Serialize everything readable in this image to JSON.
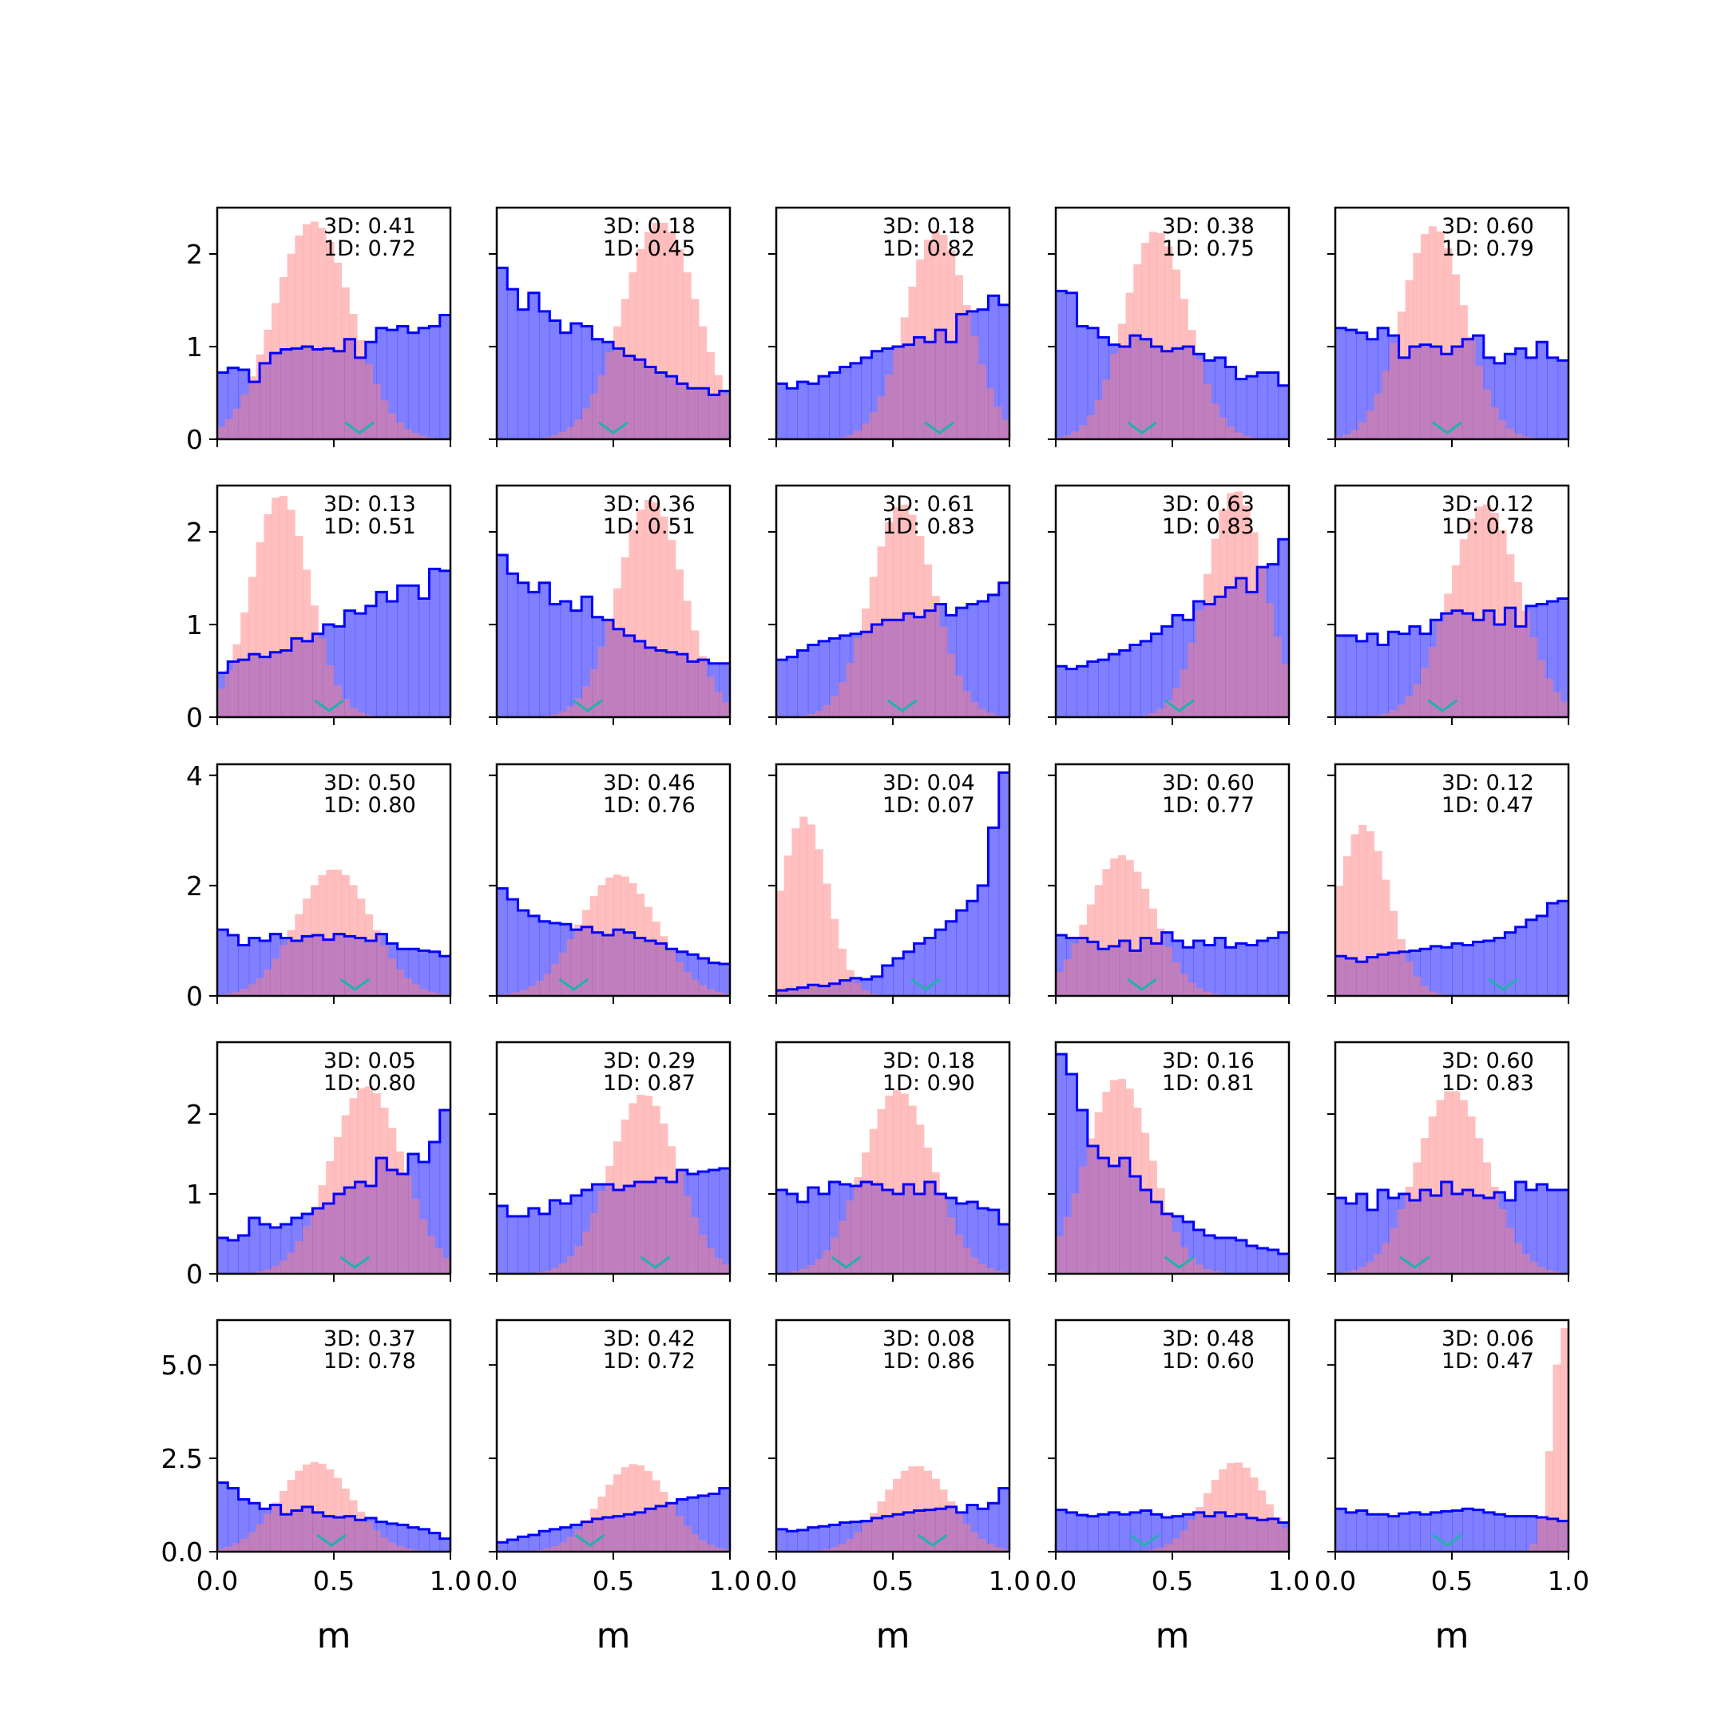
{
  "colors": {
    "uniform": "#0000ff",
    "uniform_fill": "#8080ff",
    "posterior": "#ff8080",
    "overlap": "#c03d7f",
    "marker": "#20b2aa"
  },
  "chart_data": {
    "type": "histogram-grid",
    "rows": 5,
    "cols": 5,
    "xlabel": "m",
    "xlim": [
      0,
      1
    ],
    "xticks": [
      "0.0",
      "0.5",
      "1.0"
    ],
    "row_ylims": [
      [
        0,
        2.5
      ],
      [
        0,
        2.5
      ],
      [
        0,
        4.2
      ],
      [
        0,
        2.9
      ],
      [
        0,
        6.2
      ]
    ],
    "row_yticks": [
      [
        "0",
        "1",
        "2"
      ],
      [
        "0",
        "1",
        "2"
      ],
      [
        "0",
        "2",
        "4"
      ],
      [
        "0",
        "1",
        "2"
      ],
      [
        "0.0",
        "2.5",
        "5.0"
      ]
    ],
    "panels": [
      {
        "label_3d": "3D: 0.41",
        "label_1d": "1D: 0.72",
        "marker_x": 0.61,
        "posterior": {
          "mean": 0.41,
          "sd": 0.165,
          "peak": 2.35
        },
        "uniform": [
          0.72,
          0.77,
          0.75,
          0.62,
          0.82,
          0.93,
          0.97,
          0.98,
          1.0,
          0.97,
          0.98,
          0.95,
          1.08,
          0.88,
          1.05,
          1.2,
          1.18,
          1.22,
          1.15,
          1.2,
          1.22,
          1.34
        ]
      },
      {
        "label_3d": "3D: 0.18",
        "label_1d": "1D: 0.45",
        "marker_x": 0.5,
        "posterior": {
          "mean": 0.7,
          "sd": 0.16,
          "peak": 2.35
        },
        "uniform": [
          1.85,
          1.62,
          1.4,
          1.58,
          1.38,
          1.28,
          1.15,
          1.25,
          1.22,
          1.08,
          1.05,
          0.98,
          0.9,
          0.86,
          0.78,
          0.72,
          0.68,
          0.6,
          0.55,
          0.55,
          0.48,
          0.52
        ]
      },
      {
        "label_3d": "3D: 0.18",
        "label_1d": "1D: 0.82",
        "marker_x": 0.7,
        "posterior": {
          "mean": 0.69,
          "sd": 0.135,
          "peak": 2.25
        },
        "uniform": [
          0.6,
          0.55,
          0.62,
          0.6,
          0.68,
          0.72,
          0.78,
          0.82,
          0.88,
          0.95,
          0.98,
          1.0,
          1.02,
          1.1,
          1.05,
          1.18,
          1.05,
          1.35,
          1.38,
          1.4,
          1.55,
          1.45
        ]
      },
      {
        "label_3d": "3D: 0.38",
        "label_1d": "1D: 0.75",
        "marker_x": 0.37,
        "posterior": {
          "mean": 0.43,
          "sd": 0.135,
          "peak": 2.25
        },
        "uniform": [
          1.6,
          1.58,
          1.22,
          1.2,
          1.1,
          1.02,
          1.0,
          1.12,
          1.08,
          1.0,
          0.95,
          0.98,
          1.0,
          0.92,
          0.85,
          0.88,
          0.78,
          0.65,
          0.68,
          0.72,
          0.72,
          0.58
        ]
      },
      {
        "label_3d": "3D: 0.60",
        "label_1d": "1D: 0.79",
        "marker_x": 0.48,
        "posterior": {
          "mean": 0.42,
          "sd": 0.135,
          "peak": 2.3
        },
        "uniform": [
          1.2,
          1.18,
          1.15,
          1.08,
          1.2,
          1.12,
          0.88,
          1.0,
          1.02,
          1.0,
          0.92,
          1.0,
          1.08,
          1.12,
          0.88,
          0.82,
          0.92,
          0.98,
          0.88,
          1.05,
          0.88,
          0.85
        ]
      },
      {
        "label_3d": "3D: 0.13",
        "label_1d": "1D: 0.51",
        "marker_x": 0.48,
        "posterior": {
          "mean": 0.27,
          "sd": 0.125,
          "peak": 2.4
        },
        "uniform": [
          0.48,
          0.6,
          0.62,
          0.68,
          0.65,
          0.7,
          0.72,
          0.85,
          0.82,
          0.9,
          1.0,
          0.98,
          1.15,
          1.12,
          1.2,
          1.35,
          1.25,
          1.42,
          1.42,
          1.28,
          1.6,
          1.58
        ]
      },
      {
        "label_3d": "3D: 0.36",
        "label_1d": "1D: 0.51",
        "marker_x": 0.39,
        "posterior": {
          "mean": 0.66,
          "sd": 0.14,
          "peak": 2.35
        },
        "uniform": [
          1.75,
          1.55,
          1.45,
          1.35,
          1.45,
          1.22,
          1.25,
          1.15,
          1.3,
          1.08,
          1.05,
          0.95,
          0.88,
          0.82,
          0.75,
          0.72,
          0.7,
          0.68,
          0.6,
          0.62,
          0.58,
          0.58
        ]
      },
      {
        "label_3d": "3D: 0.61",
        "label_1d": "1D: 0.83",
        "marker_x": 0.54,
        "posterior": {
          "mean": 0.54,
          "sd": 0.135,
          "peak": 2.3
        },
        "uniform": [
          0.62,
          0.65,
          0.72,
          0.78,
          0.82,
          0.85,
          0.88,
          0.9,
          0.92,
          1.0,
          1.05,
          1.05,
          1.12,
          1.08,
          1.15,
          1.22,
          1.1,
          1.18,
          1.22,
          1.25,
          1.32,
          1.45
        ]
      },
      {
        "label_3d": "3D: 0.63",
        "label_1d": "1D: 0.83",
        "marker_x": 0.53,
        "posterior": {
          "mean": 0.77,
          "sd": 0.125,
          "peak": 2.45
        },
        "uniform": [
          0.55,
          0.52,
          0.55,
          0.6,
          0.62,
          0.68,
          0.72,
          0.78,
          0.82,
          0.9,
          0.98,
          1.1,
          1.05,
          1.25,
          1.22,
          1.3,
          1.4,
          1.5,
          1.35,
          1.62,
          1.65,
          1.92
        ]
      },
      {
        "label_3d": "3D: 0.12",
        "label_1d": "1D: 0.78",
        "marker_x": 0.46,
        "posterior": {
          "mean": 0.64,
          "sd": 0.15,
          "peak": 2.3
        },
        "uniform": [
          0.88,
          0.88,
          0.82,
          0.9,
          0.78,
          0.92,
          0.9,
          0.98,
          0.9,
          1.05,
          1.12,
          1.15,
          1.12,
          1.05,
          1.15,
          1.0,
          1.18,
          0.98,
          1.2,
          1.22,
          1.25,
          1.28
        ]
      },
      {
        "label_3d": "3D: 0.50",
        "label_1d": "1D: 0.80",
        "marker_x": 0.59,
        "posterior": {
          "mean": 0.5,
          "sd": 0.16,
          "peak": 2.3
        },
        "uniform": [
          1.2,
          1.1,
          0.92,
          1.05,
          1.0,
          1.12,
          1.05,
          1.0,
          1.08,
          1.1,
          1.02,
          1.12,
          1.08,
          1.05,
          1.0,
          1.12,
          0.95,
          0.85,
          0.85,
          0.82,
          0.8,
          0.72
        ]
      },
      {
        "label_3d": "3D: 0.46",
        "label_1d": "1D: 0.76",
        "marker_x": 0.33,
        "posterior": {
          "mean": 0.52,
          "sd": 0.165,
          "peak": 2.2
        },
        "uniform": [
          1.95,
          1.75,
          1.55,
          1.45,
          1.35,
          1.32,
          1.3,
          1.2,
          1.25,
          1.15,
          1.1,
          1.2,
          1.15,
          1.05,
          1.0,
          0.95,
          0.85,
          0.8,
          0.75,
          0.68,
          0.6,
          0.58
        ]
      },
      {
        "label_3d": "3D: 0.04",
        "label_1d": "1D: 0.07",
        "marker_x": 0.64,
        "posterior": {
          "mean": 0.12,
          "sd": 0.1,
          "peak": 3.25
        },
        "uniform": [
          0.1,
          0.12,
          0.15,
          0.2,
          0.18,
          0.22,
          0.28,
          0.32,
          0.3,
          0.35,
          0.55,
          0.68,
          0.8,
          0.95,
          1.05,
          1.2,
          1.35,
          1.55,
          1.72,
          2.0,
          3.05,
          4.05
        ]
      },
      {
        "label_3d": "3D: 0.60",
        "label_1d": "1D: 0.77",
        "marker_x": 0.37,
        "posterior": {
          "mean": 0.28,
          "sd": 0.14,
          "peak": 2.55
        },
        "uniform": [
          1.1,
          1.05,
          1.05,
          0.98,
          0.85,
          0.9,
          1.0,
          0.82,
          1.05,
          0.95,
          1.15,
          1.0,
          0.88,
          1.0,
          0.92,
          1.05,
          0.88,
          0.95,
          0.92,
          1.0,
          1.05,
          1.15
        ]
      },
      {
        "label_3d": "3D: 0.12",
        "label_1d": "1D: 0.47",
        "marker_x": 0.72,
        "posterior": {
          "mean": 0.12,
          "sd": 0.11,
          "peak": 3.1
        },
        "uniform": [
          0.72,
          0.68,
          0.62,
          0.7,
          0.75,
          0.78,
          0.8,
          0.82,
          0.85,
          0.9,
          0.88,
          0.95,
          0.92,
          0.98,
          1.0,
          1.05,
          1.15,
          1.25,
          1.38,
          1.45,
          1.68,
          1.72
        ]
      },
      {
        "label_3d": "3D: 0.05",
        "label_1d": "1D: 0.80",
        "marker_x": 0.59,
        "posterior": {
          "mean": 0.64,
          "sd": 0.155,
          "peak": 2.35
        },
        "uniform": [
          0.45,
          0.42,
          0.48,
          0.7,
          0.62,
          0.58,
          0.62,
          0.7,
          0.75,
          0.82,
          0.88,
          1.0,
          1.08,
          1.15,
          1.1,
          1.45,
          1.3,
          1.25,
          1.5,
          1.4,
          1.65,
          2.05
        ]
      },
      {
        "label_3d": "3D: 0.29",
        "label_1d": "1D: 0.87",
        "marker_x": 0.68,
        "posterior": {
          "mean": 0.63,
          "sd": 0.145,
          "peak": 2.25
        },
        "uniform": [
          0.85,
          0.72,
          0.72,
          0.82,
          0.75,
          0.92,
          0.88,
          0.98,
          1.05,
          1.12,
          1.12,
          1.05,
          1.1,
          1.15,
          1.15,
          1.2,
          1.15,
          1.3,
          1.25,
          1.28,
          1.3,
          1.32
        ]
      },
      {
        "label_3d": "3D: 0.18",
        "label_1d": "1D: 0.90",
        "marker_x": 0.3,
        "posterior": {
          "mean": 0.52,
          "sd": 0.15,
          "peak": 2.3
        },
        "uniform": [
          1.05,
          1.0,
          0.9,
          1.08,
          1.0,
          1.15,
          1.12,
          1.1,
          1.15,
          1.12,
          1.05,
          1.0,
          1.12,
          1.0,
          1.15,
          1.0,
          0.95,
          0.88,
          0.9,
          0.82,
          0.8,
          0.62
        ]
      },
      {
        "label_3d": "3D: 0.16",
        "label_1d": "1D: 0.81",
        "marker_x": 0.53,
        "posterior": {
          "mean": 0.27,
          "sd": 0.14,
          "peak": 2.45
        },
        "uniform": [
          2.75,
          2.5,
          2.05,
          1.6,
          1.45,
          1.35,
          1.45,
          1.22,
          1.05,
          0.9,
          0.75,
          0.72,
          0.65,
          0.55,
          0.48,
          0.45,
          0.45,
          0.42,
          0.35,
          0.32,
          0.3,
          0.25
        ]
      },
      {
        "label_3d": "3D: 0.60",
        "label_1d": "1D: 0.83",
        "marker_x": 0.34,
        "posterior": {
          "mean": 0.5,
          "sd": 0.15,
          "peak": 2.3
        },
        "uniform": [
          0.95,
          0.88,
          1.0,
          0.8,
          1.05,
          0.95,
          1.0,
          0.92,
          1.05,
          0.98,
          1.15,
          1.0,
          1.05,
          0.98,
          0.95,
          1.02,
          0.92,
          1.15,
          1.05,
          1.12,
          1.05,
          1.05
        ]
      },
      {
        "label_3d": "3D: 0.37",
        "label_1d": "1D: 0.78",
        "marker_x": 0.49,
        "posterior": {
          "mean": 0.42,
          "sd": 0.155,
          "peak": 2.4
        },
        "uniform": [
          1.85,
          1.7,
          1.4,
          1.3,
          1.15,
          1.25,
          1.0,
          1.1,
          1.2,
          1.05,
          0.95,
          0.92,
          0.95,
          0.85,
          0.9,
          0.8,
          0.75,
          0.72,
          0.65,
          0.6,
          0.5,
          0.35
        ]
      },
      {
        "label_3d": "3D: 0.42",
        "label_1d": "1D: 0.72",
        "marker_x": 0.4,
        "posterior": {
          "mean": 0.59,
          "sd": 0.145,
          "peak": 2.35
        },
        "uniform": [
          0.25,
          0.32,
          0.4,
          0.45,
          0.55,
          0.6,
          0.65,
          0.72,
          0.8,
          0.88,
          0.92,
          0.95,
          1.0,
          1.05,
          1.15,
          1.22,
          1.3,
          1.4,
          1.45,
          1.5,
          1.55,
          1.7
        ]
      },
      {
        "label_3d": "3D: 0.08",
        "label_1d": "1D: 0.86",
        "marker_x": 0.67,
        "posterior": {
          "mean": 0.6,
          "sd": 0.145,
          "peak": 2.3
        },
        "uniform": [
          0.6,
          0.55,
          0.58,
          0.65,
          0.68,
          0.72,
          0.78,
          0.8,
          0.82,
          0.9,
          0.95,
          1.0,
          1.05,
          1.1,
          1.12,
          1.15,
          1.2,
          1.05,
          1.25,
          1.15,
          1.3,
          1.7
        ]
      },
      {
        "label_3d": "3D: 0.48",
        "label_1d": "1D: 0.60",
        "marker_x": 0.38,
        "posterior": {
          "mean": 0.77,
          "sd": 0.13,
          "peak": 2.4
        },
        "uniform": [
          1.12,
          1.05,
          0.98,
          0.95,
          1.0,
          1.05,
          1.0,
          1.05,
          1.1,
          1.0,
          0.92,
          0.95,
          1.0,
          1.05,
          0.95,
          1.05,
          0.95,
          1.0,
          0.9,
          0.85,
          0.88,
          0.78
        ]
      },
      {
        "label_3d": "3D: 0.06",
        "label_1d": "1D: 0.47",
        "marker_x": 0.48,
        "posterior": {
          "mean": 0.98,
          "sd": 0.05,
          "peak": 6.0
        },
        "uniform": [
          1.15,
          1.05,
          1.1,
          1.0,
          1.0,
          0.95,
          1.02,
          1.05,
          1.0,
          1.05,
          1.08,
          1.1,
          1.15,
          1.12,
          1.05,
          1.0,
          0.95,
          0.95,
          0.95,
          0.92,
          0.88,
          0.82
        ]
      }
    ]
  }
}
